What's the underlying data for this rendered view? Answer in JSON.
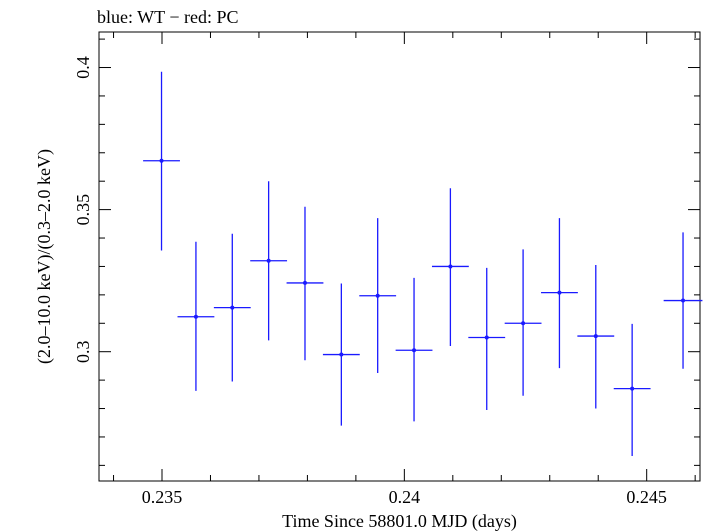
{
  "chart_data": {
    "type": "scatter",
    "title": "blue: WT − red: PC",
    "xlabel": "Time Since 58801.0 MJD (days)",
    "ylabel": "(2.0–10.0 keV)/(0.3–2.0 keV)",
    "xlim": [
      0.2337,
      0.2461
    ],
    "ylim": [
      0.2545,
      0.4125
    ],
    "x_ticks": [
      0.235,
      0.24,
      0.245
    ],
    "x_tick_labels": [
      "0.235",
      "0.24",
      "0.245"
    ],
    "y_ticks": [
      0.3,
      0.35,
      0.4
    ],
    "y_tick_labels": [
      "0.3",
      "0.35",
      "0.4"
    ],
    "grid": false,
    "series": [
      {
        "name": "WT",
        "color": "#1a1aff",
        "points": [
          {
            "x": 0.23499,
            "y": 0.3672,
            "xerr": 0.00038,
            "ylo": 0.3356,
            "yhi": 0.3985
          },
          {
            "x": 0.2357,
            "y": 0.3123,
            "xerr": 0.00038,
            "ylo": 0.2862,
            "yhi": 0.3387
          },
          {
            "x": 0.23645,
            "y": 0.3155,
            "xerr": 0.00038,
            "ylo": 0.2895,
            "yhi": 0.3415
          },
          {
            "x": 0.2372,
            "y": 0.332,
            "xerr": 0.00038,
            "ylo": 0.304,
            "yhi": 0.36
          },
          {
            "x": 0.23795,
            "y": 0.3242,
            "xerr": 0.00038,
            "ylo": 0.297,
            "yhi": 0.351
          },
          {
            "x": 0.2387,
            "y": 0.299,
            "xerr": 0.00038,
            "ylo": 0.274,
            "yhi": 0.324
          },
          {
            "x": 0.23945,
            "y": 0.3197,
            "xerr": 0.00038,
            "ylo": 0.2925,
            "yhi": 0.347
          },
          {
            "x": 0.2402,
            "y": 0.3005,
            "xerr": 0.00038,
            "ylo": 0.2755,
            "yhi": 0.326
          },
          {
            "x": 0.24095,
            "y": 0.33,
            "xerr": 0.00038,
            "ylo": 0.302,
            "yhi": 0.3575
          },
          {
            "x": 0.2417,
            "y": 0.305,
            "xerr": 0.00038,
            "ylo": 0.2795,
            "yhi": 0.3295
          },
          {
            "x": 0.24245,
            "y": 0.31,
            "xerr": 0.00038,
            "ylo": 0.2845,
            "yhi": 0.336
          },
          {
            "x": 0.2432,
            "y": 0.3208,
            "xerr": 0.00038,
            "ylo": 0.2942,
            "yhi": 0.347
          },
          {
            "x": 0.24395,
            "y": 0.3055,
            "xerr": 0.00038,
            "ylo": 0.28,
            "yhi": 0.3305
          },
          {
            "x": 0.2447,
            "y": 0.287,
            "xerr": 0.00038,
            "ylo": 0.2633,
            "yhi": 0.3098
          },
          {
            "x": 0.24575,
            "y": 0.318,
            "xerr": 0.0004,
            "ylo": 0.294,
            "yhi": 0.342
          }
        ]
      }
    ]
  }
}
